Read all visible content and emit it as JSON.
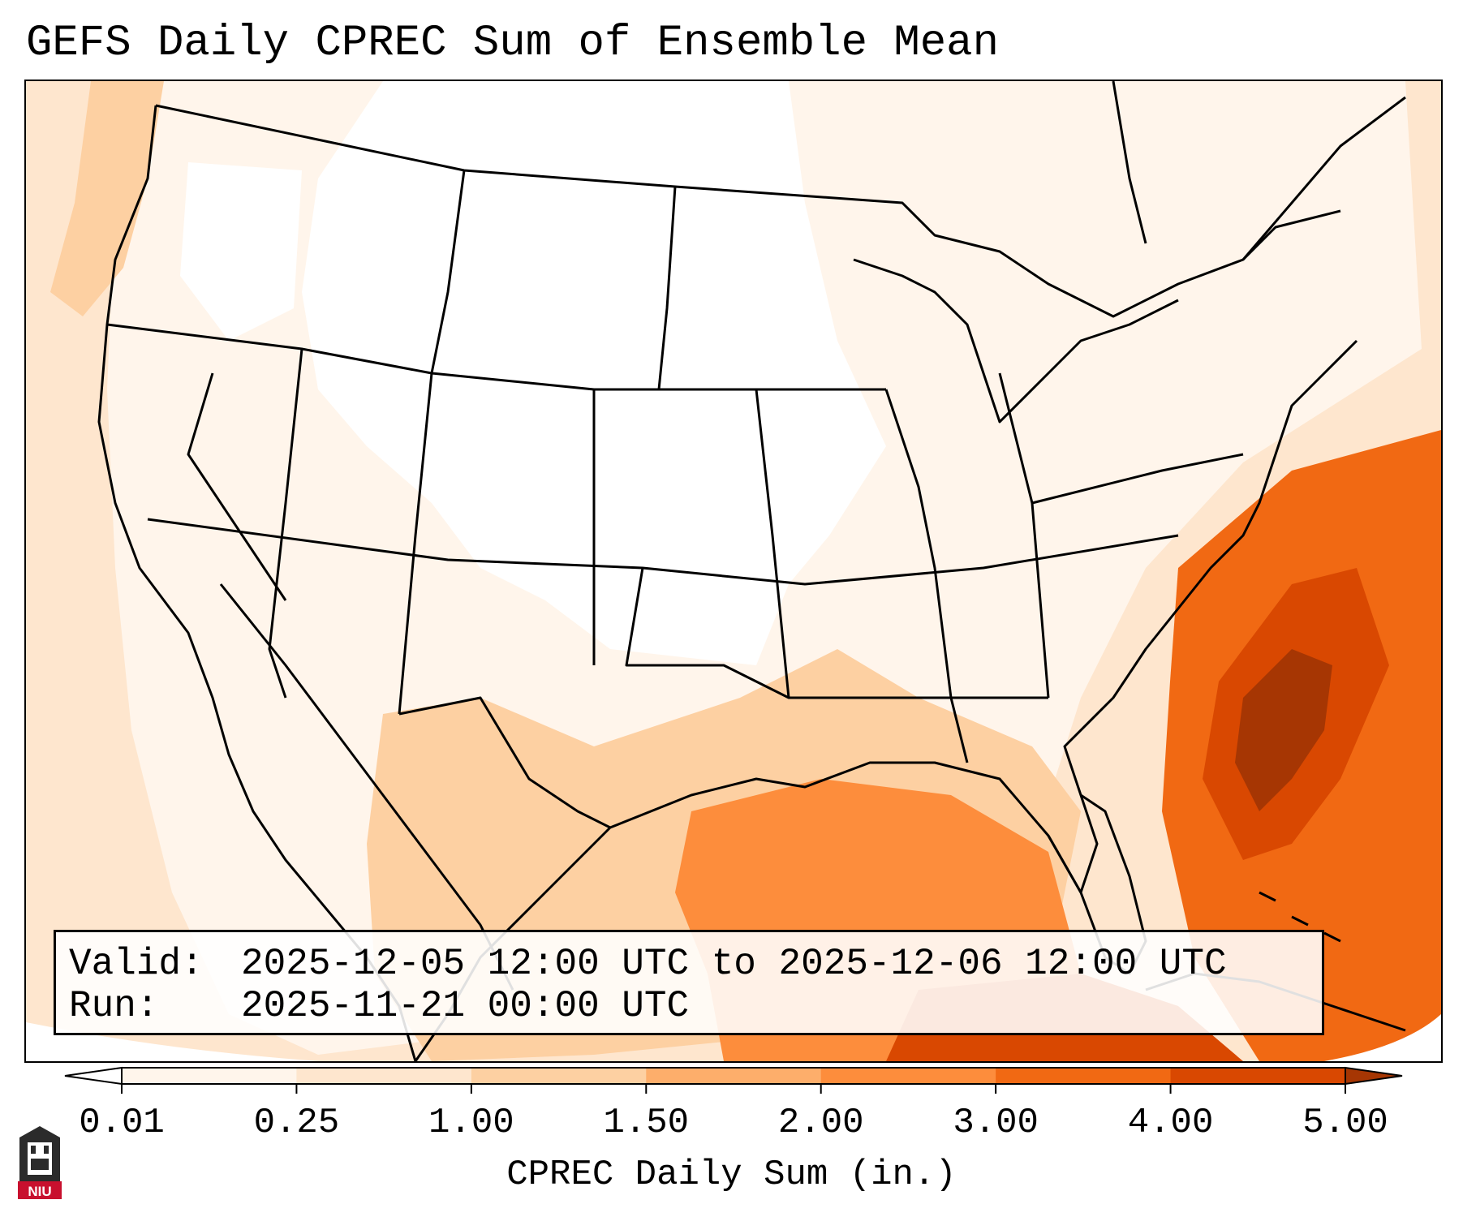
{
  "title": "GEFS Daily CPREC Sum of Ensemble Mean",
  "info": {
    "valid_label": "Valid:",
    "valid_value": "2025-12-05 12:00 UTC to 2025-12-06 12:00 UTC",
    "run_label": "Run:",
    "run_value": "2025-11-21 00:00 UTC"
  },
  "colorbar": {
    "label": "CPREC Daily Sum (in.)",
    "ticks": [
      "0.01",
      "0.25",
      "1.00",
      "1.50",
      "2.00",
      "3.00",
      "4.00",
      "5.00"
    ],
    "colors": [
      "#fff5eb",
      "#fee6ce",
      "#fdd0a2",
      "#fdae6b",
      "#fd8d3c",
      "#f16913",
      "#d94801",
      "#a63603"
    ],
    "extend": "both",
    "under_color": "#ffffff",
    "over_color": "#7f2704"
  },
  "logo": {
    "text": "NIU",
    "icon": "niu-tower-logo"
  },
  "colors": {
    "map_lines": "#000000",
    "frame": "#000000"
  }
}
